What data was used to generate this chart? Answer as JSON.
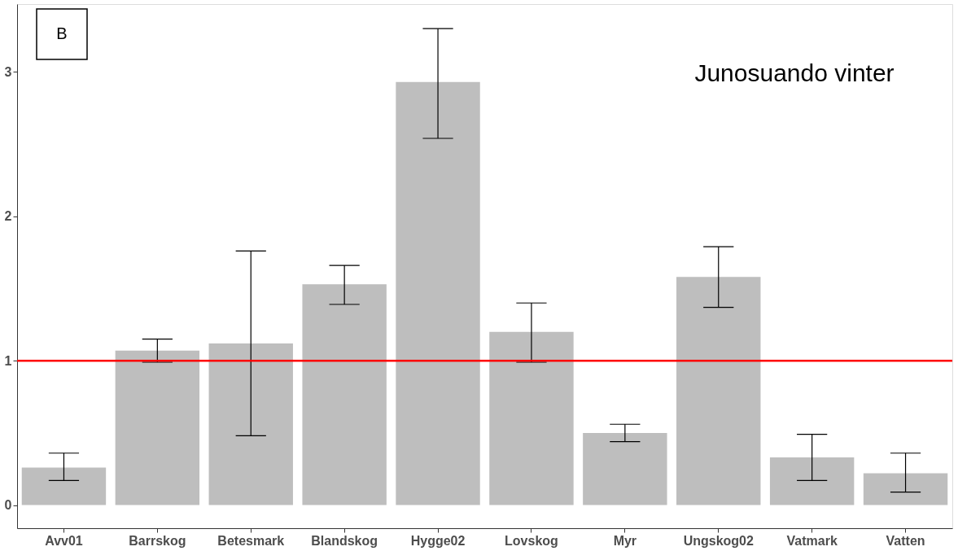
{
  "chart_data": {
    "type": "bar",
    "categories": [
      "Avv01",
      "Barrskog",
      "Betesmark",
      "Blandskog",
      "Hygge02",
      "Lovskog",
      "Myr",
      "Ungskog02",
      "Vatmark",
      "Vatten"
    ],
    "values": [
      0.26,
      1.07,
      1.12,
      1.53,
      2.93,
      1.2,
      0.5,
      1.58,
      0.33,
      0.22
    ],
    "errors": [
      [
        0.17,
        0.36
      ],
      [
        0.99,
        1.15
      ],
      [
        0.48,
        1.76
      ],
      [
        1.39,
        1.66
      ],
      [
        2.54,
        3.3
      ],
      [
        0.99,
        1.4
      ],
      [
        0.44,
        0.56
      ],
      [
        1.37,
        1.79
      ],
      [
        0.17,
        0.49
      ],
      [
        0.09,
        0.36
      ]
    ],
    "color": "#bebebe",
    "ylim": [
      -0.16,
      3.47
    ],
    "yticks": [
      0,
      1,
      2,
      3
    ],
    "grid": false,
    "ref_lines": [
      {
        "axis": "y",
        "value": 1,
        "color": "#ff0000",
        "line_style": "solid"
      }
    ],
    "annotations": [
      "B",
      "Junosuando vinter"
    ]
  }
}
